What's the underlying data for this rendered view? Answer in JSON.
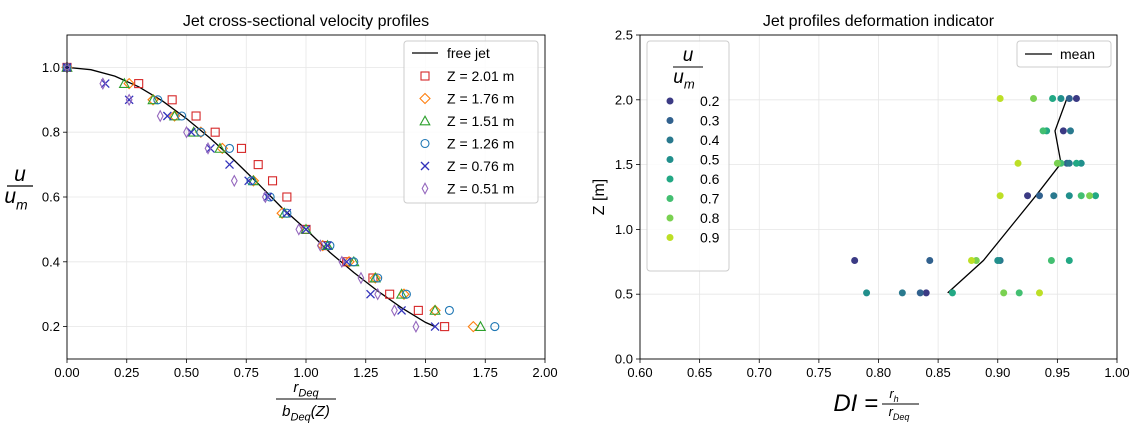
{
  "chart_data": [
    {
      "type": "scatter",
      "title": "Jet cross-sectional velocity profiles",
      "xlabel": {
        "numerator": "r",
        "numerator_sub": "Deq",
        "denominator": "b",
        "denominator_sub": "Deq",
        "denominator_suffix": "(Z)"
      },
      "ylabel": {
        "numerator": "u",
        "denominator": "u",
        "denominator_sub": "m"
      },
      "xlim": [
        0,
        2
      ],
      "ylim": [
        0.1,
        1.1
      ],
      "xticks": [
        0,
        0.25,
        0.5,
        0.75,
        1.0,
        1.25,
        1.5,
        1.75,
        2.0
      ],
      "xtick_labels": [
        "0.00",
        "0.25",
        "0.50",
        "0.75",
        "1.00",
        "1.25",
        "1.50",
        "1.75",
        "2.00"
      ],
      "yticks": [
        0.2,
        0.4,
        0.6,
        0.8,
        1.0
      ],
      "ytick_labels": [
        "0.2",
        "0.4",
        "0.6",
        "0.8",
        "1.0"
      ],
      "grid": true,
      "legend_position": "top-right",
      "line": {
        "name": "free jet",
        "color": "#000000",
        "x": [
          0,
          0.1,
          0.2,
          0.3,
          0.4,
          0.5,
          0.6,
          0.7,
          0.8,
          0.9,
          1.0,
          1.1,
          1.2,
          1.3,
          1.4,
          1.5,
          1.54
        ],
        "y": [
          1.0,
          0.993,
          0.973,
          0.94,
          0.896,
          0.842,
          0.781,
          0.713,
          0.641,
          0.566,
          0.5,
          0.429,
          0.367,
          0.31,
          0.258,
          0.213,
          0.2
        ]
      },
      "series": [
        {
          "name": "Z = 2.01 m",
          "marker": "square",
          "color": "#d62728",
          "x": [
            0.0,
            0.3,
            0.44,
            0.54,
            0.62,
            0.73,
            0.8,
            0.86,
            0.92,
            1.0,
            1.08,
            1.17,
            1.28,
            1.35,
            1.47,
            1.58
          ],
          "y": [
            1.0,
            0.95,
            0.9,
            0.85,
            0.8,
            0.75,
            0.7,
            0.65,
            0.6,
            0.5,
            0.45,
            0.4,
            0.35,
            0.3,
            0.25,
            0.2
          ]
        },
        {
          "name": "Z = 1.76 m",
          "marker": "diamond",
          "color": "#ff7f0e",
          "x": [
            0.0,
            0.26,
            0.36,
            0.45,
            0.56,
            0.65,
            0.78,
            0.9,
            1.07,
            1.18,
            1.29,
            1.41,
            1.54,
            1.7
          ],
          "y": [
            1.0,
            0.95,
            0.9,
            0.85,
            0.8,
            0.75,
            0.65,
            0.55,
            0.45,
            0.4,
            0.35,
            0.3,
            0.25,
            0.2
          ]
        },
        {
          "name": "Z = 1.51 m",
          "marker": "triangle",
          "color": "#2ca02c",
          "x": [
            0.0,
            0.24,
            0.36,
            0.45,
            0.53,
            0.64,
            0.78,
            0.91,
            1.0,
            1.09,
            1.2,
            1.29,
            1.4,
            1.54,
            1.73
          ],
          "y": [
            1.0,
            0.95,
            0.9,
            0.85,
            0.8,
            0.75,
            0.65,
            0.55,
            0.5,
            0.45,
            0.4,
            0.35,
            0.3,
            0.25,
            0.2
          ]
        },
        {
          "name": "Z = 1.26 m",
          "marker": "circle",
          "color": "#1f77b4",
          "x": [
            0.0,
            0.38,
            0.48,
            0.56,
            0.68,
            0.77,
            0.85,
            0.92,
            1.1,
            1.2,
            1.3,
            1.42,
            1.6,
            1.79
          ],
          "y": [
            1.0,
            0.9,
            0.85,
            0.8,
            0.75,
            0.65,
            0.6,
            0.55,
            0.45,
            0.4,
            0.35,
            0.3,
            0.25,
            0.2
          ]
        },
        {
          "name": "Z = 0.76 m",
          "marker": "x",
          "color": "#3333bb",
          "x": [
            0.0,
            0.16,
            0.26,
            0.42,
            0.52,
            0.6,
            0.68,
            0.76,
            0.84,
            0.92,
            1.0,
            1.09,
            1.17,
            1.27,
            1.4,
            1.54
          ],
          "y": [
            1.0,
            0.95,
            0.9,
            0.85,
            0.8,
            0.75,
            0.7,
            0.65,
            0.6,
            0.55,
            0.5,
            0.45,
            0.4,
            0.3,
            0.25,
            0.2
          ]
        },
        {
          "name": "Z = 0.51 m",
          "marker": "thin_diamond",
          "color": "#9467bd",
          "x": [
            0.0,
            0.15,
            0.26,
            0.39,
            0.5,
            0.59,
            0.7,
            0.83,
            0.97,
            1.06,
            1.15,
            1.23,
            1.3,
            1.37,
            1.46
          ],
          "y": [
            1.0,
            0.95,
            0.9,
            0.85,
            0.8,
            0.75,
            0.65,
            0.6,
            0.5,
            0.45,
            0.4,
            0.35,
            0.3,
            0.25,
            0.2
          ]
        }
      ]
    },
    {
      "type": "scatter",
      "title": "Jet profiles deformation indicator",
      "xlabel": {
        "prefix": "DI = ",
        "numerator": "r",
        "numerator_sub": "h",
        "denominator": "r",
        "denominator_sub": "Deq"
      },
      "ylabel": "Z [m]",
      "xlim": [
        0.6,
        1.0
      ],
      "ylim": [
        0.0,
        2.5
      ],
      "xticks": [
        0.6,
        0.65,
        0.7,
        0.75,
        0.8,
        0.85,
        0.9,
        0.95,
        1.0
      ],
      "xtick_labels": [
        "0.60",
        "0.65",
        "0.70",
        "0.75",
        "0.80",
        "0.85",
        "0.90",
        "0.95",
        "1.00"
      ],
      "yticks": [
        0.0,
        0.5,
        1.0,
        1.5,
        2.0,
        2.5
      ],
      "ytick_labels": [
        "0.0",
        "0.5",
        "1.0",
        "1.5",
        "2.0",
        "2.5"
      ],
      "grid": true,
      "legend_position": "top-right",
      "line": {
        "name": "mean",
        "color": "#000000",
        "x": [
          0.858,
          0.888,
          0.932,
          0.953,
          0.948,
          0.958
        ],
        "y": [
          0.51,
          0.76,
          1.26,
          1.51,
          1.76,
          2.01
        ]
      },
      "color_legend": {
        "title_numerator": "u",
        "title_denominator": "u",
        "title_denominator_sub": "m"
      },
      "series": [
        {
          "name": "0.2",
          "color": "#3b3a84",
          "x": [
            0.84,
            0.78,
            0.925,
            0.955,
            0.966
          ],
          "y": [
            0.51,
            0.76,
            1.26,
            1.76,
            2.01
          ]
        },
        {
          "name": "0.3",
          "color": "#31618e",
          "x": [
            0.835,
            0.843,
            0.935,
            0.958,
            0.96
          ],
          "y": [
            0.51,
            0.76,
            1.26,
            1.51,
            2.01
          ]
        },
        {
          "name": "0.4",
          "color": "#29798e",
          "x": [
            0.82,
            0.902,
            0.947,
            0.96,
            0.961
          ],
          "y": [
            0.51,
            0.76,
            1.26,
            1.51,
            1.76
          ]
        },
        {
          "name": "0.5",
          "color": "#218f8c",
          "x": [
            0.79,
            0.9,
            0.96,
            0.97,
            0.953
          ],
          "y": [
            0.51,
            0.76,
            1.26,
            1.51,
            2.01
          ]
        },
        {
          "name": "0.6",
          "color": "#22a884",
          "x": [
            0.862,
            0.96,
            0.982,
            0.966,
            0.941,
            0.946
          ],
          "y": [
            0.51,
            0.76,
            1.26,
            1.51,
            1.76,
            2.01
          ]
        },
        {
          "name": "0.7",
          "color": "#43bf71",
          "x": [
            0.918,
            0.945,
            0.97,
            0.953,
            0.938
          ],
          "y": [
            0.51,
            0.76,
            1.26,
            1.51,
            1.76
          ]
        },
        {
          "name": "0.8",
          "color": "#7ad151",
          "x": [
            0.905,
            0.882,
            0.977,
            0.95,
            0.93
          ],
          "y": [
            0.51,
            0.76,
            1.26,
            1.51,
            2.01
          ]
        },
        {
          "name": "0.9",
          "color": "#bddf26",
          "x": [
            0.935,
            0.878,
            0.902,
            0.917,
            0.902
          ],
          "y": [
            0.51,
            0.76,
            1.26,
            1.51,
            2.01
          ]
        }
      ]
    }
  ]
}
